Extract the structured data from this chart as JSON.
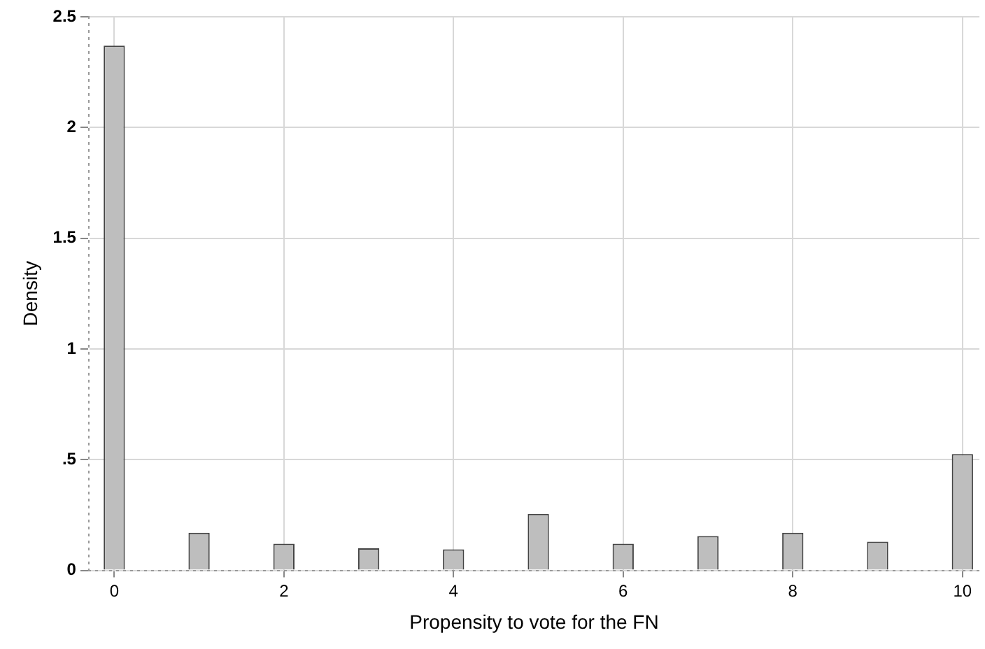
{
  "chart_data": {
    "type": "bar",
    "xlabel": "Propensity to vote for the FN",
    "ylabel": "Density",
    "x": [
      0,
      1,
      2,
      3,
      4,
      5,
      6,
      7,
      8,
      9,
      10
    ],
    "values": [
      2.37,
      0.17,
      0.12,
      0.1,
      0.095,
      0.255,
      0.12,
      0.155,
      0.17,
      0.13,
      0.525
    ],
    "color": "#bebebe",
    "xlim": [
      -0.3,
      10.2
    ],
    "xticks": [
      0,
      2,
      4,
      6,
      8,
      10
    ],
    "ylim": [
      0,
      2.5
    ],
    "yticks": [
      0,
      {
        "value": 0.5,
        "label": ".5"
      },
      1,
      1.5,
      2,
      2.5
    ],
    "grid": true
  }
}
